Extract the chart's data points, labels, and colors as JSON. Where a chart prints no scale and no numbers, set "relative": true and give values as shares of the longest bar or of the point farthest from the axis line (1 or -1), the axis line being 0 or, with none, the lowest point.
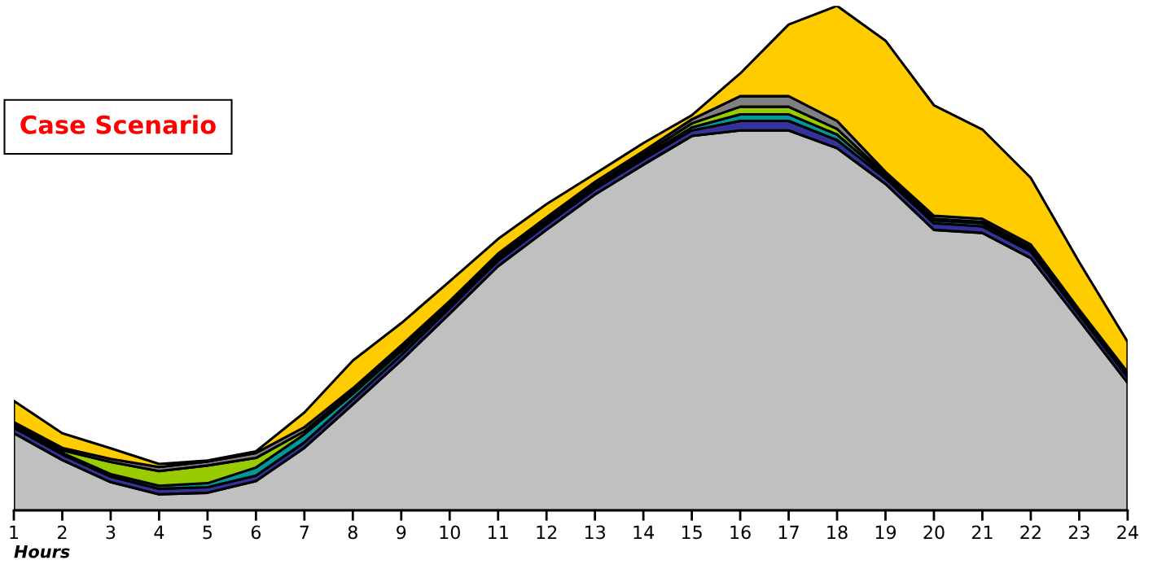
{
  "chart_data": {
    "type": "area",
    "stacked": true,
    "relative": true,
    "title": "Case Scenario",
    "xlabel": "Hours",
    "categories": [
      "1",
      "2",
      "3",
      "4",
      "5",
      "6",
      "7",
      "8",
      "9",
      "10",
      "11",
      "12",
      "13",
      "14",
      "15",
      "16",
      "17",
      "18",
      "19",
      "20",
      "21",
      "22",
      "23",
      "24"
    ],
    "series": [
      {
        "color": "#c0c0c0",
        "values": [
          0.153,
          0.1,
          0.056,
          0.032,
          0.035,
          0.058,
          0.124,
          0.21,
          0.297,
          0.39,
          0.484,
          0.556,
          0.626,
          0.685,
          0.742,
          0.753,
          0.753,
          0.718,
          0.647,
          0.556,
          0.55,
          0.5,
          0.377,
          0.253
        ]
      },
      {
        "color": "#333399",
        "values": [
          0.011,
          0.011,
          0.011,
          0.011,
          0.011,
          0.011,
          0.011,
          0.011,
          0.011,
          0.011,
          0.011,
          0.011,
          0.011,
          0.011,
          0.011,
          0.019,
          0.019,
          0.016,
          0.011,
          0.013,
          0.013,
          0.013,
          0.011,
          0.011
        ]
      },
      {
        "color": "#009999",
        "values": [
          0.003,
          0.003,
          0.005,
          0.006,
          0.008,
          0.016,
          0.016,
          0.01,
          0.008,
          0.006,
          0.006,
          0.005,
          0.005,
          0.005,
          0.006,
          0.013,
          0.013,
          0.011,
          0.005,
          0.006,
          0.006,
          0.005,
          0.003,
          0.003
        ]
      },
      {
        "color": "#99cc00",
        "values": [
          0.003,
          0.005,
          0.024,
          0.029,
          0.035,
          0.019,
          0.006,
          0.005,
          0.005,
          0.003,
          0.003,
          0.003,
          0.003,
          0.005,
          0.008,
          0.015,
          0.015,
          0.011,
          0.003,
          0.003,
          0.003,
          0.003,
          0.002,
          0.002
        ]
      },
      {
        "color": "#808080",
        "values": [
          0.005,
          0.005,
          0.006,
          0.008,
          0.008,
          0.01,
          0.008,
          0.006,
          0.006,
          0.005,
          0.005,
          0.006,
          0.006,
          0.006,
          0.008,
          0.021,
          0.021,
          0.016,
          0.005,
          0.006,
          0.006,
          0.006,
          0.005,
          0.005
        ]
      },
      {
        "color": "#ffcc00",
        "values": [
          0.042,
          0.029,
          0.021,
          0.006,
          0.002,
          0.003,
          0.029,
          0.055,
          0.044,
          0.039,
          0.029,
          0.026,
          0.016,
          0.016,
          0.008,
          0.045,
          0.142,
          0.228,
          0.26,
          0.219,
          0.177,
          0.132,
          0.094,
          0.06
        ]
      }
    ]
  }
}
